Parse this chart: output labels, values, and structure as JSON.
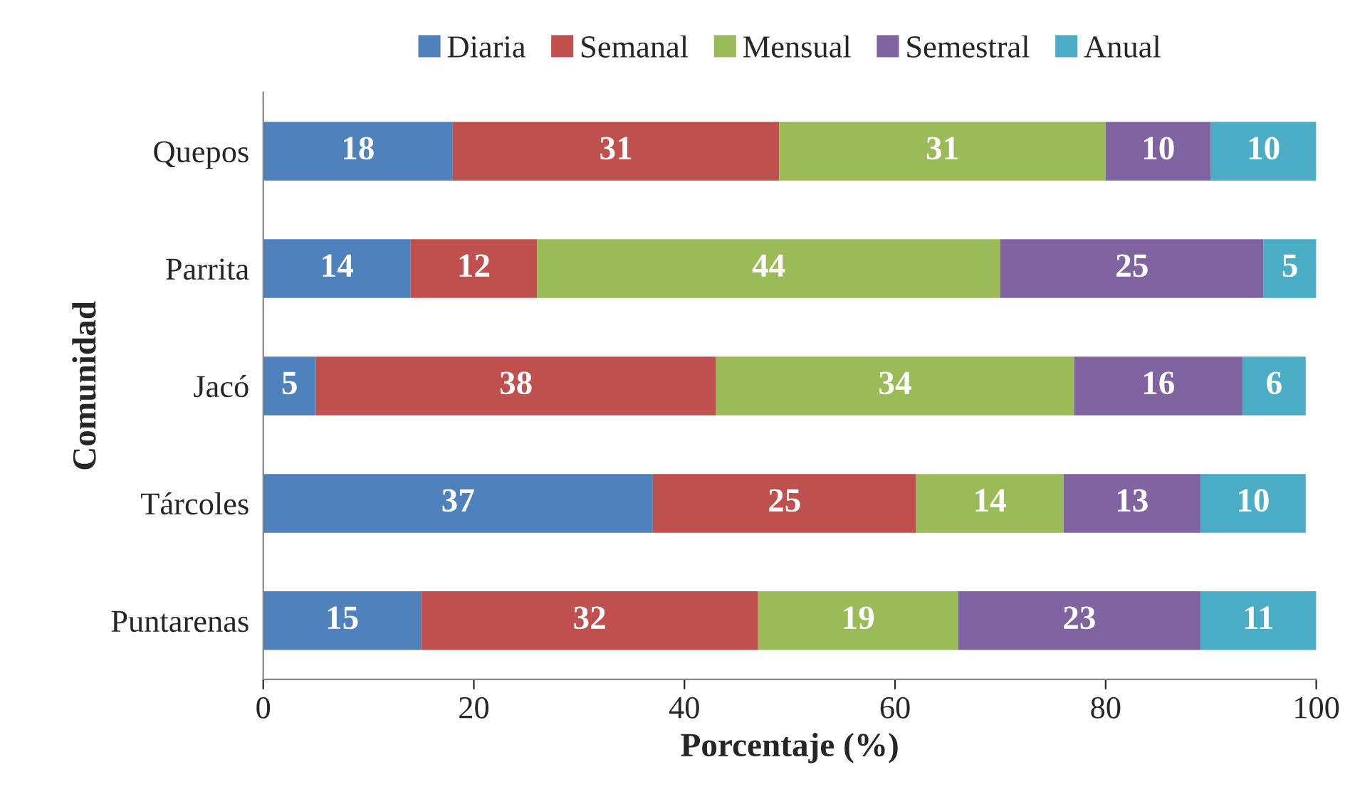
{
  "chart_data": {
    "type": "bar",
    "orientation": "horizontal",
    "stacked": true,
    "data_labels": true,
    "xlabel": "Porcentaje (%)",
    "ylabel": "Comunidad",
    "categories": [
      "Quepos",
      "Parrita",
      "Jacó",
      "Tárcoles",
      "Puntarenas"
    ],
    "series": [
      {
        "name": "Diaria",
        "color": "#4f81bd",
        "values": [
          18,
          14,
          5,
          37,
          15
        ]
      },
      {
        "name": "Semanal",
        "color": "#c0504d",
        "values": [
          31,
          12,
          38,
          25,
          32
        ]
      },
      {
        "name": "Mensual",
        "color": "#9bbb59",
        "values": [
          31,
          44,
          34,
          14,
          19
        ]
      },
      {
        "name": "Semestral",
        "color": "#8064a2",
        "values": [
          10,
          25,
          16,
          13,
          23
        ]
      },
      {
        "name": "Anual",
        "color": "#4bacc6",
        "values": [
          10,
          5,
          6,
          10,
          11
        ]
      }
    ],
    "xlim": [
      0,
      100
    ],
    "xticks": [
      0,
      20,
      40,
      60,
      80,
      100
    ],
    "grid": false,
    "legend": "top"
  }
}
